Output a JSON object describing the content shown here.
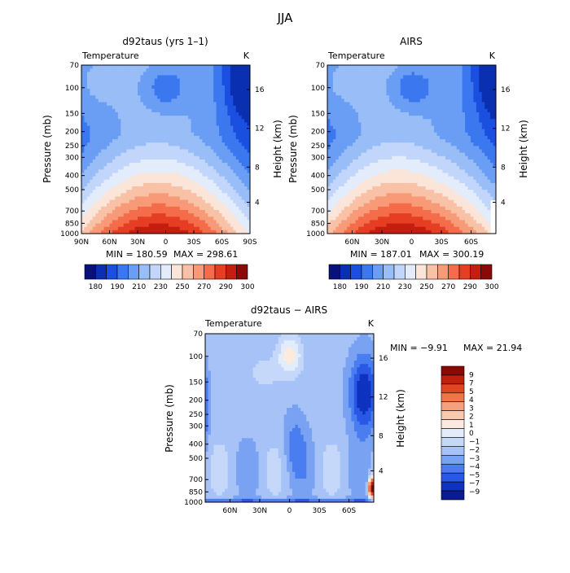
{
  "page_title": "JJA",
  "colors": {
    "seq": [
      "#08107a",
      "#0a2fb0",
      "#1a4fe0",
      "#3b78f0",
      "#6a9ef5",
      "#98bdf7",
      "#c1d6fa",
      "#e2ecfb",
      "#fbe4d8",
      "#f9c1a6",
      "#f89a78",
      "#f46c4a",
      "#e63e22",
      "#c41e10",
      "#8a0a08"
    ],
    "diff": [
      "#0a1a90",
      "#0f33c0",
      "#2a58e6",
      "#4a7df0",
      "#7aa2f3",
      "#a6c2f6",
      "#c5d8f9",
      "#e3ecfb",
      "#fdeadf",
      "#f9c8ad",
      "#f6a07d",
      "#f0754c",
      "#e24620",
      "#c01f0c",
      "#8b0806"
    ]
  },
  "chart_data": [
    {
      "id": "model",
      "type": "heatmap",
      "title": "d92taus (yrs 1–1)",
      "top_left_label": "Temperature",
      "top_right_label": "K",
      "ylabel": "Pressure (mb)",
      "y2label": "Height (km)",
      "x_ticks": [
        "90N",
        "60N",
        "30N",
        "0",
        "30S",
        "60S",
        "90S"
      ],
      "y_ticks": [
        "70",
        "100",
        "150",
        "200",
        "250",
        "300",
        "400",
        "500",
        "700",
        "850",
        "1000"
      ],
      "y2_ticks": [
        "16",
        "12",
        "8",
        "4"
      ],
      "min_label": "MIN = 180.59",
      "max_label": "MAX = 298.61",
      "colorbar_labels": [
        "180",
        "190",
        "210",
        "230",
        "250",
        "270",
        "290",
        "300"
      ],
      "contour_levels": [
        180,
        190,
        200,
        210,
        220,
        230,
        240,
        250,
        260,
        270,
        280,
        290,
        300
      ]
    },
    {
      "id": "obs",
      "type": "heatmap",
      "title": "AIRS",
      "top_left_label": "Temperature",
      "top_right_label": "K",
      "ylabel": "Pressure (mb)",
      "y2label": "Height (km)",
      "x_ticks": [
        "60N",
        "30N",
        "0",
        "30S",
        "60S"
      ],
      "y_ticks": [
        "70",
        "100",
        "150",
        "200",
        "250",
        "300",
        "400",
        "500",
        "700",
        "850",
        "1000"
      ],
      "y2_ticks": [
        "16",
        "12",
        "8",
        "4"
      ],
      "min_label": "MIN = 187.01",
      "max_label": "MAX = 300.19",
      "colorbar_labels": [
        "180",
        "190",
        "210",
        "230",
        "250",
        "270",
        "290",
        "300"
      ],
      "contour_levels": [
        180,
        190,
        200,
        210,
        220,
        230,
        240,
        250,
        260,
        270,
        280,
        290,
        300
      ]
    },
    {
      "id": "diff",
      "type": "heatmap",
      "title": "d92taus − AIRS",
      "top_left_label": "Temperature",
      "top_right_label": "K",
      "ylabel": "Pressure (mb)",
      "y2label": "Height (km)",
      "x_ticks": [
        "60N",
        "30N",
        "0",
        "30S",
        "60S"
      ],
      "y_ticks": [
        "70",
        "100",
        "150",
        "200",
        "250",
        "300",
        "400",
        "500",
        "700",
        "850",
        "1000"
      ],
      "y2_ticks": [
        "16",
        "12",
        "8",
        "4"
      ],
      "min_label": "MIN = −9.91",
      "max_label": "MAX = 21.94",
      "colorbar_labels": [
        "9",
        "7",
        "5",
        "4",
        "3",
        "2",
        "1",
        "0",
        "−1",
        "−2",
        "−3",
        "−4",
        "−5",
        "−7",
        "−9"
      ],
      "contour_levels": [
        -9,
        -7,
        -5,
        -4,
        -3,
        -2,
        -1,
        0,
        1,
        2,
        3,
        4,
        5,
        7,
        9
      ]
    }
  ]
}
